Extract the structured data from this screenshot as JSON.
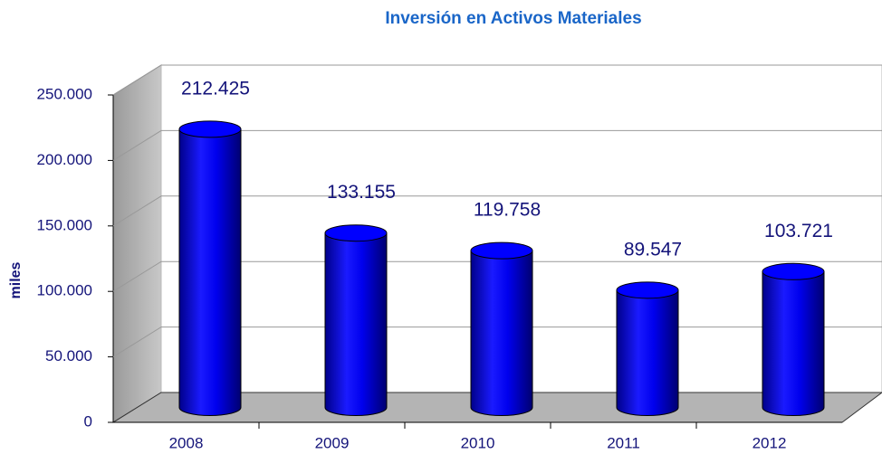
{
  "chart_data": {
    "type": "bar",
    "title": "Inversión en Activos Materiales",
    "y_label": "miles",
    "categories": [
      "2008",
      "2009",
      "2010",
      "2011",
      "2012"
    ],
    "values": [
      212425,
      133155,
      119758,
      89547,
      103721
    ],
    "value_labels": [
      "212.425",
      "133.155",
      "119.758",
      "89.547",
      "103.721"
    ],
    "color": "#0000ff",
    "ylim": [
      0,
      250000
    ],
    "yticks": [
      0,
      {
        "value": 50000,
        "label": "50.000"
      },
      {
        "value": 100000,
        "label": "100.000"
      },
      {
        "value": 150000,
        "label": "150.000"
      },
      {
        "value": 200000,
        "label": "200.000"
      },
      {
        "value": 250000,
        "label": "250.000"
      }
    ],
    "grid": true
  }
}
